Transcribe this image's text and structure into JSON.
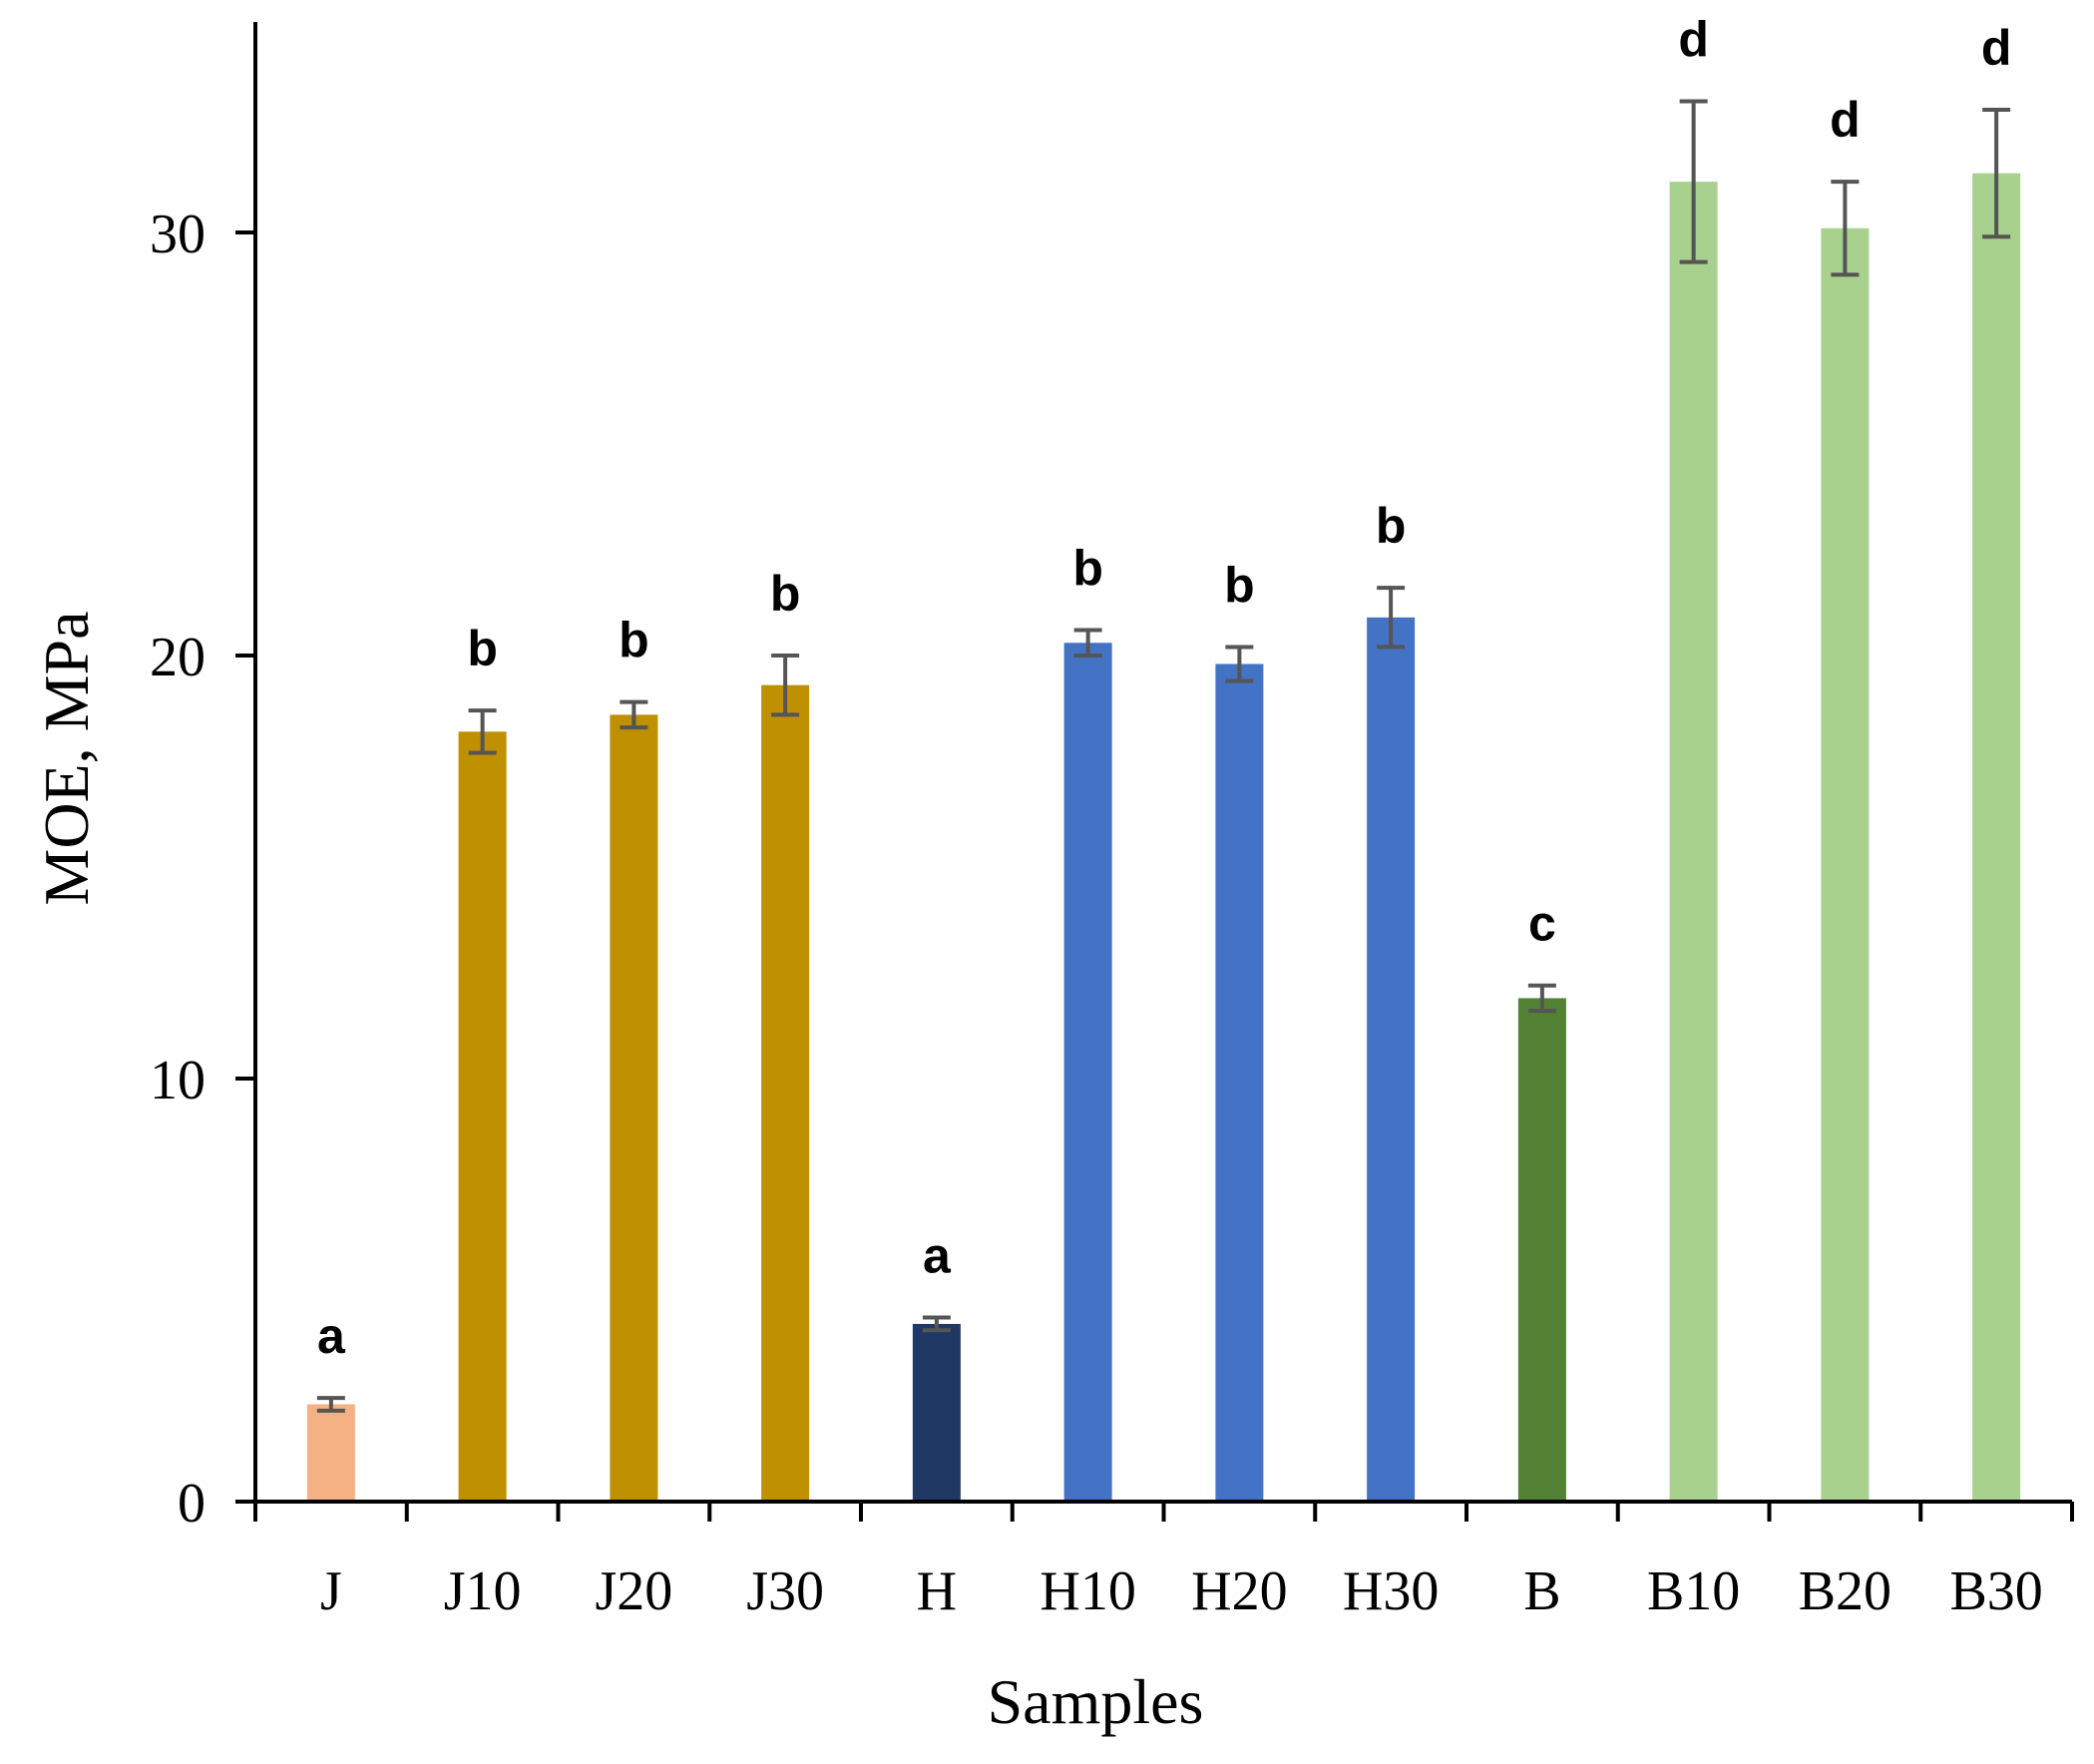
{
  "chart_data": {
    "type": "bar",
    "title": "",
    "xlabel": "Samples",
    "ylabel": "MOE, MPa",
    "ylim": [
      0,
      35
    ],
    "yticks": [
      0,
      10,
      20,
      30
    ],
    "grid": false,
    "categories": [
      "J",
      "J10",
      "J20",
      "J30",
      "H",
      "H10",
      "H20",
      "H30",
      "B",
      "B10",
      "B20",
      "B30"
    ],
    "values": [
      2.3,
      18.2,
      18.6,
      19.3,
      4.2,
      20.3,
      19.8,
      20.9,
      11.9,
      31.2,
      30.1,
      31.4
    ],
    "errors": [
      0.15,
      0.5,
      0.3,
      0.7,
      0.15,
      0.3,
      0.4,
      0.7,
      0.3,
      1.9,
      1.1,
      1.5
    ],
    "significance": [
      "a",
      "b",
      "b",
      "b",
      "a",
      "b",
      "b",
      "b",
      "c",
      "d",
      "d",
      "d"
    ],
    "colors": [
      "#F4B183",
      "#BF9000",
      "#BF9000",
      "#BF9000",
      "#203864",
      "#4472C4",
      "#4472C4",
      "#4472C4",
      "#548235",
      "#A9D18E",
      "#A9D18E",
      "#A9D18E"
    ]
  }
}
